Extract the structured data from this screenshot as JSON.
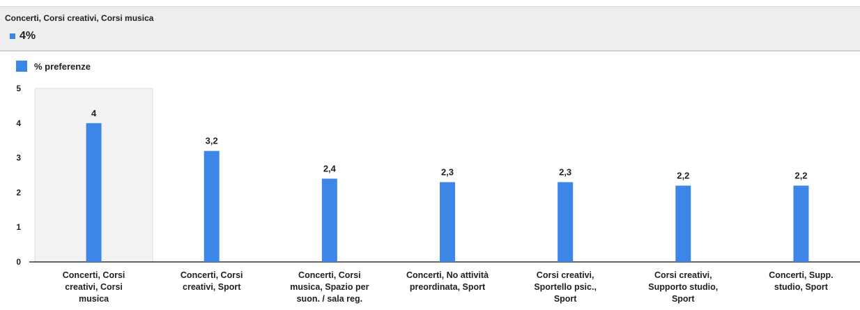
{
  "tooltip": {
    "title": "Concerti, Corsi creativi, Corsi musica",
    "value": "4%"
  },
  "colors": {
    "bar": "#3d86e8",
    "highlight": "#f2f2f2",
    "axis": "#333333"
  },
  "chart_data": {
    "type": "bar",
    "categories": [
      "Concerti, Corsi creativi, Corsi musica",
      "Concerti, Corsi creativi, Sport",
      "Concerti, Corsi musica, Spazio per suon. / sala reg.",
      "Concerti, No attività preordinata, Sport",
      "Corsi creativi, Sportello psic., Sport",
      "Corsi creativi, Supporto studio, Sport",
      "Concerti, Supp. studio, Sport"
    ],
    "category_lines": [
      [
        "Concerti, Corsi",
        "creativi, Corsi",
        "musica"
      ],
      [
        "Concerti, Corsi",
        "creativi, Sport"
      ],
      [
        "Concerti, Corsi",
        "musica, Spazio per",
        "suon. / sala reg."
      ],
      [
        "Concerti, No attività",
        "preordinata, Sport"
      ],
      [
        "Corsi creativi,",
        "Sportello psic.,",
        "Sport"
      ],
      [
        "Corsi creativi,",
        "Supporto studio,",
        "Sport"
      ],
      [
        "Concerti, Supp.",
        "studio, Sport"
      ]
    ],
    "series": [
      {
        "name": "% preferenze",
        "values": [
          4,
          3.2,
          2.4,
          2.3,
          2.3,
          2.2,
          2.2
        ],
        "labels": [
          "4",
          "3,2",
          "2,4",
          "2,3",
          "2,3",
          "2,2",
          "2,2"
        ]
      }
    ],
    "ylim": [
      0,
      5
    ],
    "yticks": [
      0,
      1,
      2,
      3,
      4,
      5
    ],
    "highlighted_index": 0,
    "legend_position": "top-left",
    "grid": false
  }
}
